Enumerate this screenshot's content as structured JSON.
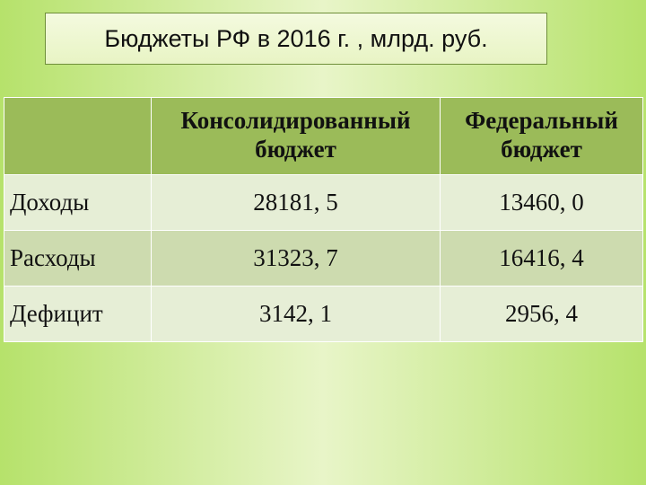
{
  "title": "Бюджеты РФ в 2016 г. , млрд. руб.",
  "table": {
    "type": "table",
    "background_corner": "#9bbb59",
    "background_header": "#9bbb59",
    "band_colors": [
      "#e6eed6",
      "#cddbaf"
    ],
    "border_color": "#ffffff",
    "title_fontsize": 27,
    "cell_fontsize": 27,
    "columns": [
      {
        "key": "label",
        "header": ""
      },
      {
        "key": "consolidated",
        "header": "Консолидированный бюджет"
      },
      {
        "key": "federal",
        "header": "Федеральный бюджет"
      }
    ],
    "rows": [
      {
        "label": "Доходы",
        "consolidated": "28181, 5",
        "federal": "13460, 0"
      },
      {
        "label": "Расходы",
        "consolidated": "31323, 7",
        "federal": "16416, 4"
      },
      {
        "label": "Дефицит",
        "consolidated": "3142, 1",
        "federal": "2956, 4"
      }
    ]
  }
}
